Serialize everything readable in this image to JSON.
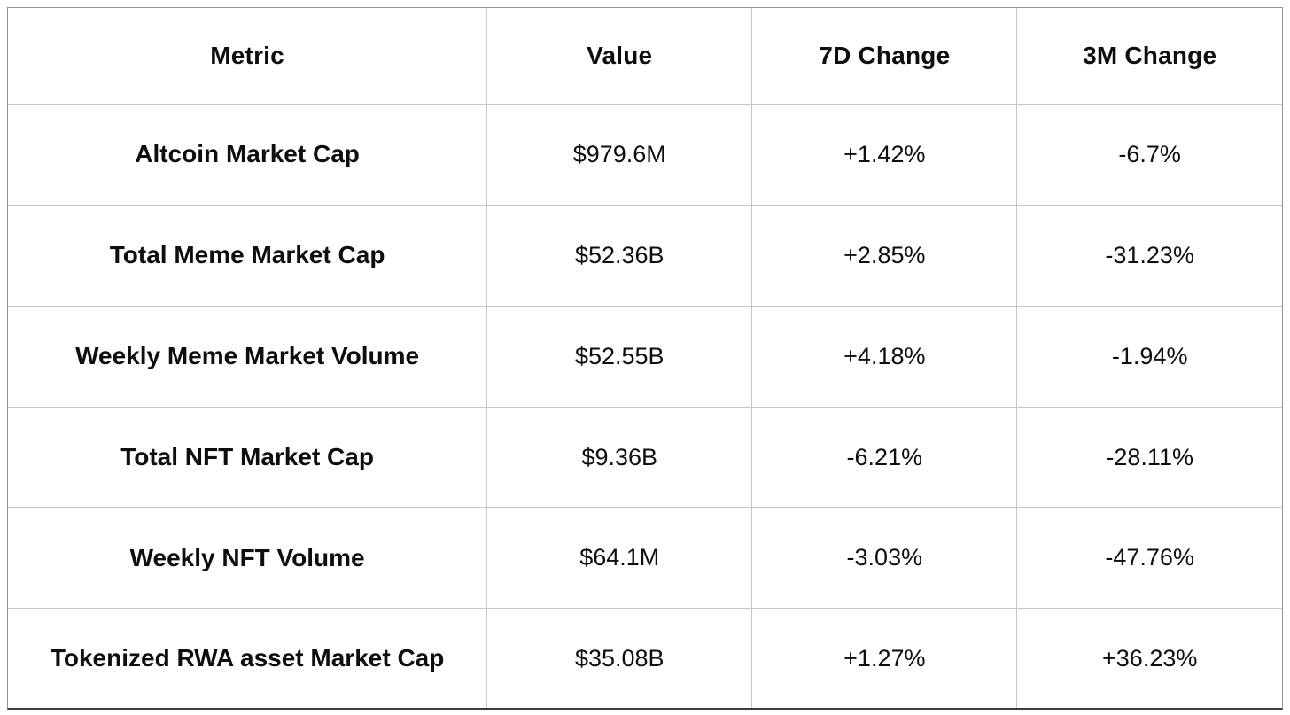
{
  "chart_data": {
    "type": "table",
    "columns": [
      "Metric",
      "Value",
      "7D Change",
      "3M Change"
    ],
    "rows": [
      {
        "metric": "Altcoin Market Cap",
        "value": "$979.6M",
        "change_7d": "+1.42%",
        "change_3m": "-6.7%"
      },
      {
        "metric": "Total Meme Market Cap",
        "value": "$52.36B",
        "change_7d": "+2.85%",
        "change_3m": "-31.23%"
      },
      {
        "metric": "Weekly Meme Market Volume",
        "value": "$52.55B",
        "change_7d": "+4.18%",
        "change_3m": "-1.94%"
      },
      {
        "metric": "Total NFT Market Cap",
        "value": "$9.36B",
        "change_7d": "-6.21%",
        "change_3m": "-28.11%"
      },
      {
        "metric": "Weekly NFT Volume",
        "value": "$64.1M",
        "change_7d": "-3.03%",
        "change_3m": "-47.76%"
      },
      {
        "metric": "Tokenized RWA asset Market Cap",
        "value": "$35.08B",
        "change_7d": "+1.27%",
        "change_3m": "+36.23%"
      }
    ]
  },
  "colors": {
    "text": "#0e0e0e",
    "inner_border": "#c6c6c6",
    "outer_border": "#949494",
    "outer_border_bottom": "#3d3d3d",
    "background": "#ffffff"
  }
}
